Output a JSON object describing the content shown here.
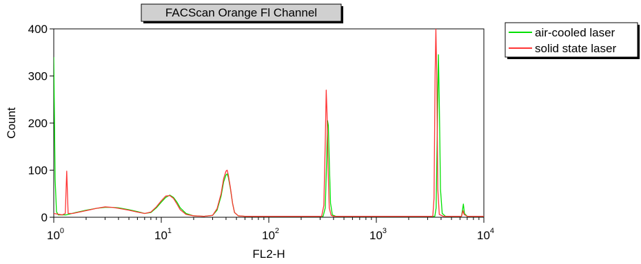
{
  "chart_data": {
    "type": "line",
    "title": "FACScan Orange Fl Channel",
    "xlabel": "FL2-H",
    "ylabel": "Count",
    "x_scale": "log",
    "xlim": [
      1,
      10000
    ],
    "ylim": [
      0,
      400
    ],
    "x_ticks": [
      {
        "base": "10",
        "exp": "0",
        "value": 1
      },
      {
        "base": "10",
        "exp": "1",
        "value": 10
      },
      {
        "base": "10",
        "exp": "2",
        "value": 100
      },
      {
        "base": "10",
        "exp": "3",
        "value": 1000
      },
      {
        "base": "10",
        "exp": "4",
        "value": 10000
      }
    ],
    "y_ticks": [
      {
        "label": "0",
        "value": 0
      },
      {
        "label": "100",
        "value": 100
      },
      {
        "label": "200",
        "value": 200
      },
      {
        "label": "300",
        "value": 300
      },
      {
        "label": "400",
        "value": 400
      }
    ],
    "grid": false,
    "legend_position": "top-right outside plot",
    "series": [
      {
        "name": "air-cooled laser",
        "color": "#00e000",
        "points": [
          [
            1.0,
            340
          ],
          [
            1.03,
            80
          ],
          [
            1.06,
            12
          ],
          [
            1.1,
            5
          ],
          [
            1.3,
            5
          ],
          [
            1.6,
            10
          ],
          [
            2.0,
            15
          ],
          [
            2.5,
            19
          ],
          [
            3.0,
            21
          ],
          [
            3.5,
            21
          ],
          [
            4.0,
            20
          ],
          [
            5.0,
            16
          ],
          [
            6.0,
            12
          ],
          [
            7.0,
            8
          ],
          [
            8.0,
            10
          ],
          [
            9.0,
            20
          ],
          [
            10.0,
            32
          ],
          [
            11.0,
            42
          ],
          [
            12.0,
            47
          ],
          [
            13.0,
            42
          ],
          [
            14.0,
            32
          ],
          [
            15.0,
            20
          ],
          [
            17.0,
            8
          ],
          [
            20.0,
            3
          ],
          [
            25.0,
            2
          ],
          [
            30.0,
            4
          ],
          [
            33.0,
            15
          ],
          [
            36.0,
            45
          ],
          [
            38.0,
            75
          ],
          [
            40.0,
            90
          ],
          [
            41.0,
            92
          ],
          [
            42.0,
            85
          ],
          [
            44.0,
            60
          ],
          [
            46.0,
            30
          ],
          [
            48.0,
            10
          ],
          [
            52.0,
            3
          ],
          [
            60.0,
            2
          ],
          [
            100.0,
            2
          ],
          [
            200.0,
            2
          ],
          [
            320.0,
            2
          ],
          [
            335.0,
            20
          ],
          [
            345.0,
            120
          ],
          [
            352.0,
            205
          ],
          [
            358.0,
            195
          ],
          [
            365.0,
            120
          ],
          [
            375.0,
            30
          ],
          [
            390.0,
            5
          ],
          [
            420.0,
            2
          ],
          [
            700.0,
            2
          ],
          [
            1000.0,
            2
          ],
          [
            3000.0,
            2
          ],
          [
            3500.0,
            2
          ],
          [
            3600.0,
            20
          ],
          [
            3700.0,
            200
          ],
          [
            3780.0,
            345
          ],
          [
            3850.0,
            250
          ],
          [
            3950.0,
            60
          ],
          [
            4100.0,
            8
          ],
          [
            4400.0,
            2
          ],
          [
            6200.0,
            2
          ],
          [
            6450.0,
            28
          ],
          [
            6600.0,
            8
          ],
          [
            7000.0,
            2
          ],
          [
            10000.0,
            2
          ]
        ]
      },
      {
        "name": "solid state laser",
        "color": "#ff3333",
        "points": [
          [
            1.0,
            8
          ],
          [
            1.2,
            5
          ],
          [
            1.28,
            8
          ],
          [
            1.32,
            98
          ],
          [
            1.36,
            8
          ],
          [
            1.5,
            8
          ],
          [
            2.0,
            14
          ],
          [
            2.5,
            19
          ],
          [
            3.0,
            22
          ],
          [
            3.5,
            21
          ],
          [
            4.0,
            19
          ],
          [
            5.0,
            15
          ],
          [
            6.0,
            11
          ],
          [
            7.0,
            8
          ],
          [
            8.0,
            11
          ],
          [
            9.0,
            22
          ],
          [
            10.0,
            35
          ],
          [
            11.0,
            45
          ],
          [
            12.0,
            46
          ],
          [
            13.0,
            40
          ],
          [
            14.0,
            28
          ],
          [
            15.0,
            16
          ],
          [
            17.0,
            6
          ],
          [
            20.0,
            3
          ],
          [
            25.0,
            2
          ],
          [
            30.0,
            4
          ],
          [
            33.0,
            18
          ],
          [
            36.0,
            50
          ],
          [
            38.0,
            82
          ],
          [
            40.0,
            98
          ],
          [
            41.0,
            100
          ],
          [
            42.0,
            90
          ],
          [
            44.0,
            62
          ],
          [
            46.0,
            30
          ],
          [
            48.0,
            10
          ],
          [
            52.0,
            3
          ],
          [
            60.0,
            2
          ],
          [
            100.0,
            2
          ],
          [
            200.0,
            2
          ],
          [
            310.0,
            2
          ],
          [
            325.0,
            25
          ],
          [
            335.0,
            160
          ],
          [
            342.0,
            270
          ],
          [
            348.0,
            220
          ],
          [
            356.0,
            100
          ],
          [
            365.0,
            20
          ],
          [
            380.0,
            4
          ],
          [
            400.0,
            2
          ],
          [
            700.0,
            2
          ],
          [
            1000.0,
            2
          ],
          [
            3000.0,
            2
          ],
          [
            3350.0,
            2
          ],
          [
            3440.0,
            40
          ],
          [
            3520.0,
            300
          ],
          [
            3580.0,
            400
          ],
          [
            3650.0,
            300
          ],
          [
            3730.0,
            60
          ],
          [
            3850.0,
            6
          ],
          [
            4200.0,
            2
          ],
          [
            6200.0,
            2
          ],
          [
            6400.0,
            14
          ],
          [
            6550.0,
            6
          ],
          [
            7000.0,
            2
          ],
          [
            10000.0,
            2
          ]
        ]
      }
    ]
  }
}
